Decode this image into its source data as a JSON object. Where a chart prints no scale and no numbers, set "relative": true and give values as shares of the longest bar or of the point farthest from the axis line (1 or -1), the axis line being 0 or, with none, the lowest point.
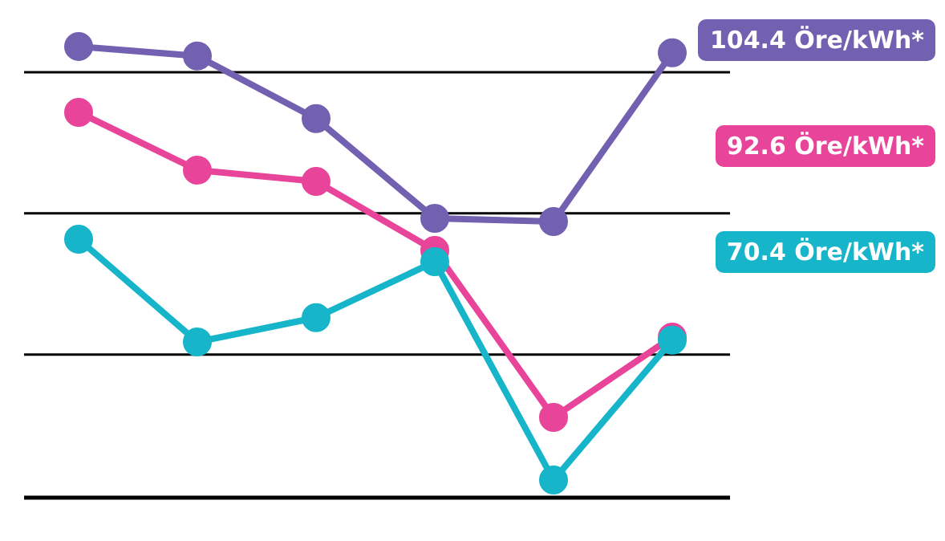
{
  "chart_data": {
    "type": "line",
    "relative": true,
    "categories": [
      null,
      null,
      null,
      null,
      null,
      null
    ],
    "marker": "circle",
    "line_style": "solid",
    "legend": false,
    "ref_lines": [
      {
        "axis": "y",
        "value": 0.317,
        "color": "#000000"
      },
      {
        "axis": "y",
        "value": 0.63,
        "color": "#000000"
      },
      {
        "axis": "y",
        "value": 0.943,
        "color": "#000000"
      }
    ],
    "series": [
      {
        "name": "104.4 Öre/kWh*",
        "color": "#7161b0",
        "values": [
          1,
          0.979,
          0.84,
          0.619,
          0.612,
          0.986
        ]
      },
      {
        "name": "92.6 Öre/kWh*",
        "color": "#e8449a",
        "values": [
          0.854,
          0.726,
          0.701,
          0.548,
          0.178,
          0.356
        ]
      },
      {
        "name": "70.4 Öre/kWh*",
        "color": "#17b5c9",
        "values": [
          0.573,
          0.345,
          0.399,
          0.523,
          0.039,
          0.349
        ]
      }
    ]
  }
}
